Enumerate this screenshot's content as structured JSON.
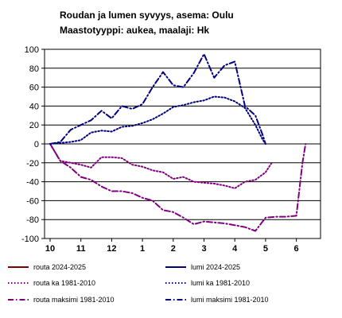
{
  "chart_data": {
    "type": "line",
    "title": "Roudan ja lumen syvyys, asema: Oulu",
    "subtitle": "Maastotyyppi: aukea, maalaji: Hk",
    "xlabel": "",
    "ylabel": "",
    "ylim": [
      -100,
      100
    ],
    "yticks": [
      100,
      80,
      60,
      40,
      20,
      0,
      -20,
      -40,
      -60,
      -80,
      -100
    ],
    "xlim": [
      0,
      8.3
    ],
    "xticks": [
      {
        "pos": 0,
        "label": "10"
      },
      {
        "pos": 1,
        "label": "11"
      },
      {
        "pos": 2,
        "label": "12"
      },
      {
        "pos": 3,
        "label": "1"
      },
      {
        "pos": 4,
        "label": "2"
      },
      {
        "pos": 5,
        "label": "3"
      },
      {
        "pos": 6,
        "label": "4"
      },
      {
        "pos": 7,
        "label": "5"
      },
      {
        "pos": 8,
        "label": "6"
      }
    ],
    "grid": true,
    "legend_position": "bottom",
    "series": [
      {
        "name": "routa 2024-2025",
        "color": "#800000",
        "style": "solid",
        "x": [],
        "y": []
      },
      {
        "name": "lumi 2024-2025",
        "color": "#000080",
        "style": "solid",
        "x": [],
        "y": []
      },
      {
        "name": "routa ka 1981-2010",
        "color": "#800080",
        "style": "dot",
        "x": [
          0.0,
          0.33,
          0.67,
          1.0,
          1.33,
          1.67,
          2.0,
          2.33,
          2.67,
          3.0,
          3.33,
          3.67,
          4.0,
          4.33,
          4.67,
          5.0,
          5.33,
          5.67,
          6.0,
          6.33,
          6.67,
          7.0,
          7.2
        ],
        "y": [
          0,
          -18,
          -20,
          -22,
          -25,
          -14,
          -14,
          -15,
          -22,
          -24,
          -28,
          -30,
          -37,
          -35,
          -40,
          -41,
          -42,
          -44,
          -47,
          -40,
          -38,
          -30,
          -20
        ]
      },
      {
        "name": "lumi ka 1981-2010",
        "color": "#000080",
        "style": "dot",
        "x": [
          0.0,
          0.33,
          0.67,
          1.0,
          1.33,
          1.67,
          2.0,
          2.33,
          2.67,
          3.0,
          3.33,
          3.67,
          4.0,
          4.33,
          4.67,
          5.0,
          5.33,
          5.67,
          6.0,
          6.33,
          6.67,
          6.9,
          7.0
        ],
        "y": [
          0,
          1,
          2,
          4,
          12,
          14,
          13,
          18,
          19,
          22,
          26,
          32,
          39,
          41,
          44,
          46,
          50,
          49,
          45,
          38,
          20,
          5,
          0
        ]
      },
      {
        "name": "routa maksimi 1981-2010",
        "color": "#800080",
        "style": "dashdot",
        "x": [
          0.0,
          0.33,
          0.67,
          1.0,
          1.33,
          1.67,
          2.0,
          2.33,
          2.67,
          3.0,
          3.33,
          3.67,
          4.0,
          4.33,
          4.67,
          5.0,
          5.33,
          5.67,
          6.0,
          6.33,
          6.67,
          7.0,
          7.33,
          7.67,
          8.0,
          8.2,
          8.3
        ],
        "y": [
          0,
          -18,
          -25,
          -35,
          -38,
          -45,
          -50,
          -50,
          -52,
          -57,
          -60,
          -70,
          -72,
          -78,
          -85,
          -82,
          -83,
          -84,
          -86,
          -88,
          -92,
          -78,
          -77,
          -77,
          -76,
          -20,
          0
        ]
      },
      {
        "name": "lumi maksimi 1981-2010",
        "color": "#000080",
        "style": "dashdot",
        "x": [
          0.0,
          0.33,
          0.67,
          1.0,
          1.33,
          1.67,
          2.0,
          2.33,
          2.67,
          3.0,
          3.33,
          3.67,
          4.0,
          4.33,
          4.67,
          5.0,
          5.33,
          5.67,
          6.0,
          6.33,
          6.67,
          6.9,
          7.0
        ],
        "y": [
          0,
          2,
          15,
          20,
          25,
          35,
          27,
          40,
          37,
          42,
          60,
          76,
          62,
          60,
          75,
          95,
          70,
          83,
          87,
          40,
          30,
          10,
          0
        ]
      }
    ]
  }
}
